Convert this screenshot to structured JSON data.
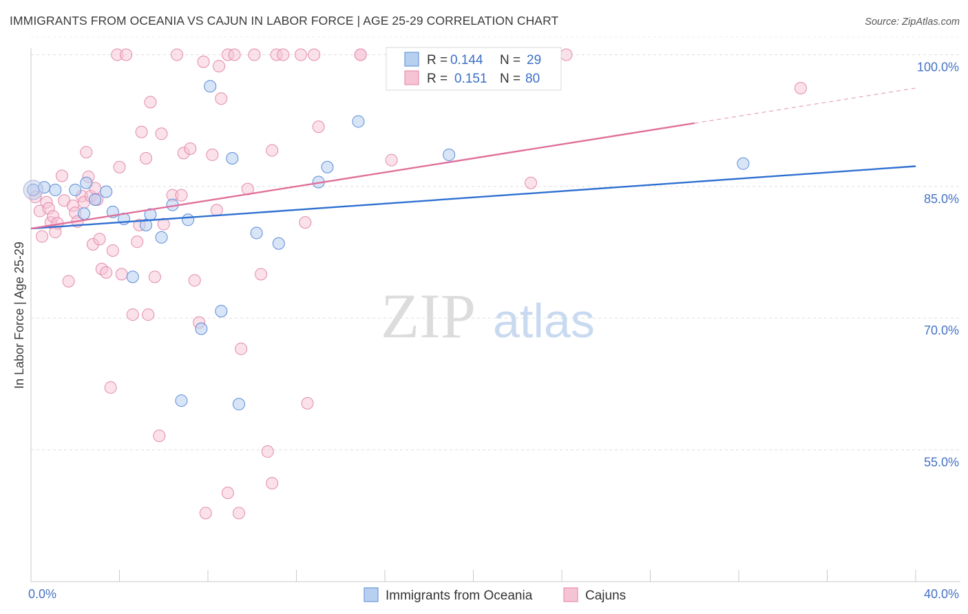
{
  "title": "IMMIGRANTS FROM OCEANIA VS CAJUN IN LABOR FORCE | AGE 25-29 CORRELATION CHART",
  "source": "Source: ZipAtlas.com",
  "watermark": {
    "zip": "ZIP",
    "atlas": "atlas"
  },
  "colors": {
    "blue": "#4a7fd4",
    "blue_fill": "#b8d0f0",
    "pink": "#e0709a",
    "pink_fill": "#f6c3d5",
    "axis_text": "#4472c4"
  },
  "legend": {
    "series1": {
      "r_label": "R =",
      "r_value": "0.144",
      "n_label": "N =",
      "n_value": "29"
    },
    "series2": {
      "r_label": "R =",
      "r_value": "0.151",
      "n_label": "N =",
      "n_value": "80"
    }
  },
  "bottom_legend": [
    "Immigrants from Oceania",
    "Cajuns"
  ],
  "chart_data": {
    "type": "scatter",
    "title": "IMMIGRANTS FROM OCEANIA VS CAJUN IN LABOR FORCE | AGE 25-29 CORRELATION CHART",
    "xlabel": "",
    "ylabel": "In Labor Force | Age 25-29",
    "xlim": [
      0,
      40
    ],
    "ylim": [
      40,
      102
    ],
    "x_tick_labels": [
      "0.0%",
      "40.0%"
    ],
    "y_ticks": [
      55,
      70,
      85,
      100
    ],
    "y_tick_labels": [
      "55.0%",
      "70.0%",
      "85.0%",
      "100.0%"
    ],
    "series": [
      {
        "name": "Immigrants from Oceania",
        "r": 0.144,
        "n": 29,
        "trend": {
          "x0": 0,
          "y0": 80.2,
          "x1": 40,
          "y1": 87.3
        },
        "points": [
          [
            0.1,
            84.6
          ],
          [
            0.6,
            84.9
          ],
          [
            1.1,
            84.6
          ],
          [
            2.0,
            84.6
          ],
          [
            2.5,
            85.4
          ],
          [
            2.4,
            81.9
          ],
          [
            2.9,
            83.5
          ],
          [
            3.4,
            84.4
          ],
          [
            3.7,
            82.1
          ],
          [
            4.2,
            81.3
          ],
          [
            4.6,
            74.7
          ],
          [
            5.2,
            80.6
          ],
          [
            5.4,
            81.8
          ],
          [
            5.9,
            79.2
          ],
          [
            6.4,
            82.9
          ],
          [
            6.8,
            60.6
          ],
          [
            7.1,
            81.2
          ],
          [
            7.7,
            68.8
          ],
          [
            8.1,
            96.4
          ],
          [
            8.6,
            70.8
          ],
          [
            9.1,
            88.2
          ],
          [
            9.4,
            60.2
          ],
          [
            10.2,
            79.7
          ],
          [
            11.2,
            78.5
          ],
          [
            13.0,
            85.5
          ],
          [
            13.4,
            87.2
          ],
          [
            14.8,
            92.4
          ],
          [
            18.9,
            88.6
          ],
          [
            32.2,
            87.6
          ]
        ]
      },
      {
        "name": "Cajuns",
        "r": 0.151,
        "n": 80,
        "trend": {
          "x0": 0,
          "y0": 80.2,
          "x1": 30,
          "y1": 92.2,
          "dash_to_x": 40,
          "dash_to_y": 96.2
        },
        "points": [
          [
            0.2,
            83.8
          ],
          [
            0.4,
            82.2
          ],
          [
            0.5,
            79.3
          ],
          [
            0.7,
            83.2
          ],
          [
            0.8,
            82.5
          ],
          [
            0.9,
            80.9
          ],
          [
            1.0,
            81.6
          ],
          [
            1.1,
            79.8
          ],
          [
            1.2,
            80.8
          ],
          [
            1.4,
            86.2
          ],
          [
            1.5,
            83.4
          ],
          [
            1.7,
            74.2
          ],
          [
            1.9,
            82.8
          ],
          [
            2.0,
            82.0
          ],
          [
            2.1,
            81.0
          ],
          [
            2.3,
            83.9
          ],
          [
            2.4,
            83.2
          ],
          [
            2.5,
            88.9
          ],
          [
            2.6,
            86.1
          ],
          [
            2.7,
            83.9
          ],
          [
            2.8,
            78.4
          ],
          [
            2.9,
            84.8
          ],
          [
            3.0,
            83.5
          ],
          [
            3.1,
            79.0
          ],
          [
            3.2,
            75.6
          ],
          [
            3.4,
            75.2
          ],
          [
            3.6,
            62.1
          ],
          [
            3.7,
            77.7
          ],
          [
            3.9,
            100.0
          ],
          [
            4.0,
            87.2
          ],
          [
            4.1,
            75.0
          ],
          [
            4.3,
            100.0
          ],
          [
            4.6,
            70.4
          ],
          [
            4.8,
            78.7
          ],
          [
            4.9,
            80.6
          ],
          [
            5.0,
            91.2
          ],
          [
            5.2,
            88.2
          ],
          [
            5.3,
            70.4
          ],
          [
            5.4,
            94.6
          ],
          [
            5.6,
            74.7
          ],
          [
            5.8,
            56.6
          ],
          [
            5.9,
            91.0
          ],
          [
            6.0,
            80.7
          ],
          [
            6.4,
            84.0
          ],
          [
            6.6,
            100.0
          ],
          [
            6.8,
            84.0
          ],
          [
            6.9,
            88.8
          ],
          [
            7.2,
            89.3
          ],
          [
            7.4,
            74.3
          ],
          [
            7.6,
            69.5
          ],
          [
            7.8,
            99.2
          ],
          [
            7.9,
            47.8
          ],
          [
            8.2,
            88.6
          ],
          [
            8.4,
            82.3
          ],
          [
            8.5,
            98.7
          ],
          [
            8.6,
            95.0
          ],
          [
            8.9,
            50.1
          ],
          [
            8.9,
            100.0
          ],
          [
            9.2,
            100.0
          ],
          [
            9.5,
            66.5
          ],
          [
            9.4,
            47.8
          ],
          [
            9.8,
            84.7
          ],
          [
            10.1,
            100.0
          ],
          [
            10.4,
            75.0
          ],
          [
            10.7,
            54.8
          ],
          [
            10.9,
            51.2
          ],
          [
            10.9,
            89.1
          ],
          [
            11.1,
            100.0
          ],
          [
            11.4,
            100.0
          ],
          [
            12.2,
            100.0
          ],
          [
            12.4,
            80.9
          ],
          [
            12.5,
            60.3
          ],
          [
            12.8,
            100.0
          ],
          [
            13.0,
            91.8
          ],
          [
            14.9,
            100.0
          ],
          [
            14.9,
            100.0
          ],
          [
            16.3,
            88.0
          ],
          [
            22.6,
            85.4
          ],
          [
            34.8,
            96.2
          ],
          [
            24.2,
            100.0
          ]
        ]
      }
    ]
  }
}
